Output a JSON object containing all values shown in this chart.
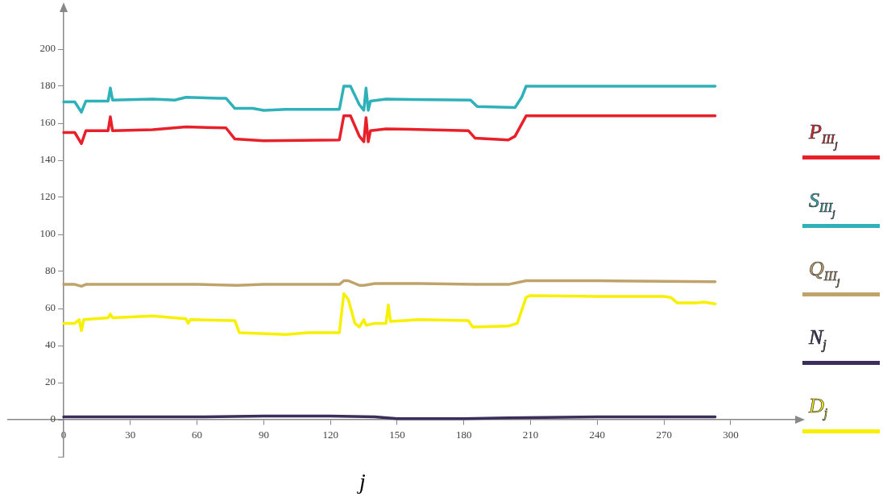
{
  "chart_data": {
    "type": "line",
    "xlabel": "j",
    "legend": "right",
    "grid": false,
    "marker": "none",
    "line_style": "solid",
    "xlim": [
      -25,
      329
    ],
    "ylim": [
      -20,
      220
    ],
    "xticks": [
      0,
      30,
      60,
      90,
      120,
      150,
      180,
      210,
      240,
      270,
      300
    ],
    "yticks": [
      {
        "value": -20,
        "label": null
      },
      0,
      20,
      40,
      60,
      80,
      100,
      120,
      140,
      160,
      180,
      200
    ],
    "series": [
      {
        "name": "P$_{III}$$_{j}$",
        "color": "#e8202a",
        "x": [
          0,
          5,
          8,
          10,
          20,
          21,
          22,
          40,
          55,
          73,
          77,
          90,
          124,
          126,
          129,
          133,
          135,
          136,
          137,
          138,
          145,
          182,
          185,
          200,
          203,
          208,
          293
        ],
        "values": [
          155,
          155,
          149,
          156,
          156,
          163.5,
          156,
          156.5,
          158,
          157.5,
          151.5,
          150.5,
          151,
          164,
          164,
          153,
          150,
          163,
          150,
          156,
          157,
          156,
          152,
          151,
          153,
          164,
          164
        ]
      },
      {
        "name": "S$_{III}$$_{j}$",
        "color": "#2fb1b9",
        "x": [
          0,
          5,
          8,
          10,
          20,
          21,
          22,
          40,
          50,
          55,
          70,
          73,
          77,
          85,
          90,
          100,
          124,
          126,
          129,
          133,
          135,
          136,
          137,
          138,
          145,
          183,
          186,
          203,
          206,
          208,
          240,
          293
        ],
        "values": [
          171.5,
          171.5,
          166,
          172,
          172,
          179,
          172.5,
          173,
          172.5,
          174,
          173.5,
          173.5,
          168,
          168,
          167,
          167.5,
          167.5,
          180,
          180,
          170,
          167,
          179,
          167,
          172,
          173,
          172.5,
          169,
          168.5,
          174,
          180,
          180,
          180
        ]
      },
      {
        "name": "Q$_{III}$$_{j}$",
        "color": "#bfa36b",
        "x": [
          0,
          5,
          8,
          10,
          60,
          78,
          90,
          124,
          126,
          128,
          133,
          135,
          140,
          160,
          185,
          200,
          208,
          240,
          293
        ],
        "values": [
          73,
          73,
          72,
          73,
          73,
          72.5,
          73,
          73,
          75,
          75,
          72.5,
          72.5,
          73.5,
          73.5,
          73,
          73,
          75,
          75,
          74.5
        ]
      },
      {
        "name": "N$_{j}$",
        "color": "#3b2e5a",
        "x": [
          0,
          30,
          60,
          90,
          120,
          140,
          150,
          180,
          200,
          240,
          270,
          293
        ],
        "values": [
          1.5,
          1.5,
          1.5,
          2,
          2,
          1.5,
          0.5,
          0.5,
          1,
          1.5,
          1.5,
          1.5
        ]
      },
      {
        "name": "D$_{j}$",
        "color": "#f7f000",
        "x": [
          0,
          5,
          7,
          8,
          9,
          20,
          21,
          22,
          40,
          55,
          56,
          57,
          77,
          79,
          100,
          110,
          124,
          126,
          128,
          131,
          133,
          135,
          136,
          140,
          145,
          146,
          147,
          160,
          182,
          184,
          200,
          204,
          208,
          210,
          240,
          270,
          273,
          276,
          285,
          288,
          293
        ],
        "values": [
          52,
          52,
          54,
          48,
          54,
          55,
          57,
          55,
          56,
          54.5,
          52,
          54,
          53.5,
          47,
          46,
          47,
          47,
          68,
          65,
          52,
          50,
          54,
          51,
          52,
          52,
          62,
          53,
          54,
          53.5,
          50,
          50.5,
          52,
          66,
          67,
          66.5,
          66.5,
          66,
          63,
          63,
          63.5,
          62.5
        ]
      }
    ]
  }
}
